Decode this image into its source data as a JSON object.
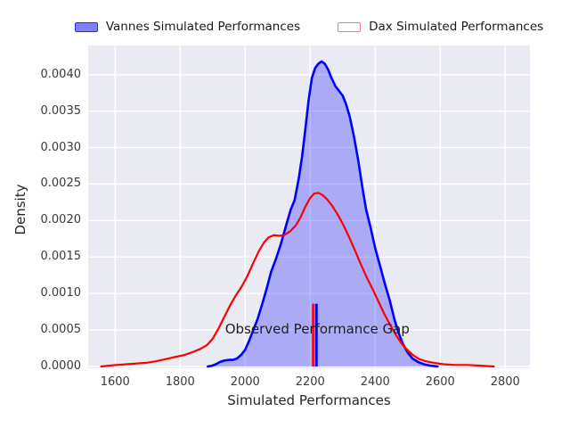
{
  "colors": {
    "figure_background": "#ffffff",
    "axes_background": "#eaeaf2",
    "grid": "#ffffff",
    "vannes_line": "#0000ff",
    "vannes_fill": "rgba(0,0,255,0.27)",
    "dax_line": "#ff0000",
    "text": "#262626"
  },
  "legend": {
    "items": [
      {
        "label": "Vannes Simulated Performances",
        "swatch": "filled-blue-patch"
      },
      {
        "label": "Dax Simulated Performances",
        "swatch": "outline-red-patch"
      }
    ]
  },
  "chart_data": {
    "type": "area",
    "title": "",
    "xlabel": "Simulated Performances",
    "ylabel": "Density",
    "xlim": [
      1517,
      2876
    ],
    "ylim": [
      -2.5e-05,
      0.0044
    ],
    "grid": true,
    "legend_position": "top-outside-2col",
    "x_tick_values": [
      1600,
      1800,
      2000,
      2200,
      2400,
      2600,
      2800
    ],
    "x_tick_labels": [
      "1600",
      "1800",
      "2000",
      "2200",
      "2400",
      "2600",
      "2800"
    ],
    "y_tick_values": [
      0.0,
      0.0005,
      0.001,
      0.0015,
      0.002,
      0.0025,
      0.003,
      0.0035,
      0.004
    ],
    "y_tick_labels": [
      "0.0000",
      "0.0005",
      "0.0010",
      "0.0015",
      "0.0020",
      "0.0025",
      "0.0030",
      "0.0035",
      "0.0040"
    ],
    "series": [
      {
        "name": "Vannes Simulated Performances",
        "color": "#0000ff",
        "fill": true,
        "line_width": 2.6,
        "points": [
          [
            1885,
            0
          ],
          [
            1898,
            1e-05
          ],
          [
            1910,
            3e-05
          ],
          [
            1922,
            6e-05
          ],
          [
            1935,
            8e-05
          ],
          [
            1950,
            9e-05
          ],
          [
            1962,
            9e-05
          ],
          [
            1975,
            0.00011
          ],
          [
            1988,
            0.00016
          ],
          [
            2000,
            0.00023
          ],
          [
            2012,
            0.00035
          ],
          [
            2025,
            0.0005
          ],
          [
            2038,
            0.00065
          ],
          [
            2052,
            0.00085
          ],
          [
            2065,
            0.00105
          ],
          [
            2080,
            0.0013
          ],
          [
            2095,
            0.00148
          ],
          [
            2110,
            0.00168
          ],
          [
            2125,
            0.00192
          ],
          [
            2140,
            0.00215
          ],
          [
            2152,
            0.00228
          ],
          [
            2165,
            0.00258
          ],
          [
            2175,
            0.00288
          ],
          [
            2185,
            0.00325
          ],
          [
            2195,
            0.00365
          ],
          [
            2205,
            0.00395
          ],
          [
            2215,
            0.00409
          ],
          [
            2225,
            0.00415
          ],
          [
            2235,
            0.00418
          ],
          [
            2245,
            0.00415
          ],
          [
            2255,
            0.00407
          ],
          [
            2265,
            0.00396
          ],
          [
            2278,
            0.00384
          ],
          [
            2290,
            0.00377
          ],
          [
            2300,
            0.00371
          ],
          [
            2310,
            0.0036
          ],
          [
            2322,
            0.00342
          ],
          [
            2335,
            0.00315
          ],
          [
            2348,
            0.00282
          ],
          [
            2360,
            0.00247
          ],
          [
            2372,
            0.00215
          ],
          [
            2385,
            0.00192
          ],
          [
            2400,
            0.00162
          ],
          [
            2415,
            0.00138
          ],
          [
            2430,
            0.00113
          ],
          [
            2445,
            0.0009
          ],
          [
            2460,
            0.00063
          ],
          [
            2472,
            0.00046
          ],
          [
            2485,
            0.00031
          ],
          [
            2500,
            0.00019
          ],
          [
            2515,
            0.00011
          ],
          [
            2532,
            6e-05
          ],
          [
            2550,
            3e-05
          ],
          [
            2570,
            1e-05
          ],
          [
            2592,
            0
          ]
        ]
      },
      {
        "name": "Dax Simulated Performances",
        "color": "#ff0000",
        "fill": false,
        "line_width": 2.2,
        "points": [
          [
            1557,
            0
          ],
          [
            1580,
            1e-05
          ],
          [
            1605,
            2e-05
          ],
          [
            1635,
            3e-05
          ],
          [
            1665,
            4e-05
          ],
          [
            1695,
            5e-05
          ],
          [
            1725,
            7e-05
          ],
          [
            1755,
            0.0001
          ],
          [
            1785,
            0.00013
          ],
          [
            1815,
            0.00016
          ],
          [
            1840,
            0.0002
          ],
          [
            1862,
            0.00024
          ],
          [
            1882,
            0.00029
          ],
          [
            1900,
            0.00038
          ],
          [
            1918,
            0.00052
          ],
          [
            1936,
            0.00068
          ],
          [
            1954,
            0.00084
          ],
          [
            1972,
            0.00098
          ],
          [
            1990,
            0.0011
          ],
          [
            2008,
            0.00125
          ],
          [
            2025,
            0.00142
          ],
          [
            2042,
            0.00158
          ],
          [
            2058,
            0.0017
          ],
          [
            2072,
            0.00177
          ],
          [
            2088,
            0.0018
          ],
          [
            2105,
            0.00179
          ],
          [
            2120,
            0.0018
          ],
          [
            2138,
            0.00185
          ],
          [
            2155,
            0.00193
          ],
          [
            2170,
            0.00204
          ],
          [
            2185,
            0.00219
          ],
          [
            2200,
            0.00231
          ],
          [
            2212,
            0.00237
          ],
          [
            2225,
            0.00238
          ],
          [
            2238,
            0.00235
          ],
          [
            2252,
            0.00229
          ],
          [
            2268,
            0.0022
          ],
          [
            2285,
            0.00208
          ],
          [
            2302,
            0.00194
          ],
          [
            2320,
            0.00177
          ],
          [
            2338,
            0.00159
          ],
          [
            2356,
            0.0014
          ],
          [
            2374,
            0.00122
          ],
          [
            2392,
            0.00106
          ],
          [
            2410,
            0.00089
          ],
          [
            2428,
            0.00072
          ],
          [
            2446,
            0.00057
          ],
          [
            2464,
            0.00043
          ],
          [
            2482,
            0.00031
          ],
          [
            2500,
            0.00022
          ],
          [
            2518,
            0.00015
          ],
          [
            2536,
            0.0001
          ],
          [
            2556,
            7e-05
          ],
          [
            2580,
            5e-05
          ],
          [
            2610,
            3e-05
          ],
          [
            2645,
            2e-05
          ],
          [
            2685,
            2e-05
          ],
          [
            2725,
            1e-05
          ],
          [
            2765,
            0
          ]
        ]
      }
    ],
    "vlines": [
      {
        "x": 2209,
        "color": "#ff0000",
        "ymax": 0.00086,
        "width": 2.5
      },
      {
        "x": 2219,
        "color": "#0000ff",
        "ymax": 0.00086,
        "width": 3
      }
    ],
    "annotation": {
      "text": "Observed Performance Gap",
      "x": 2222,
      "y": 0.00051
    }
  }
}
